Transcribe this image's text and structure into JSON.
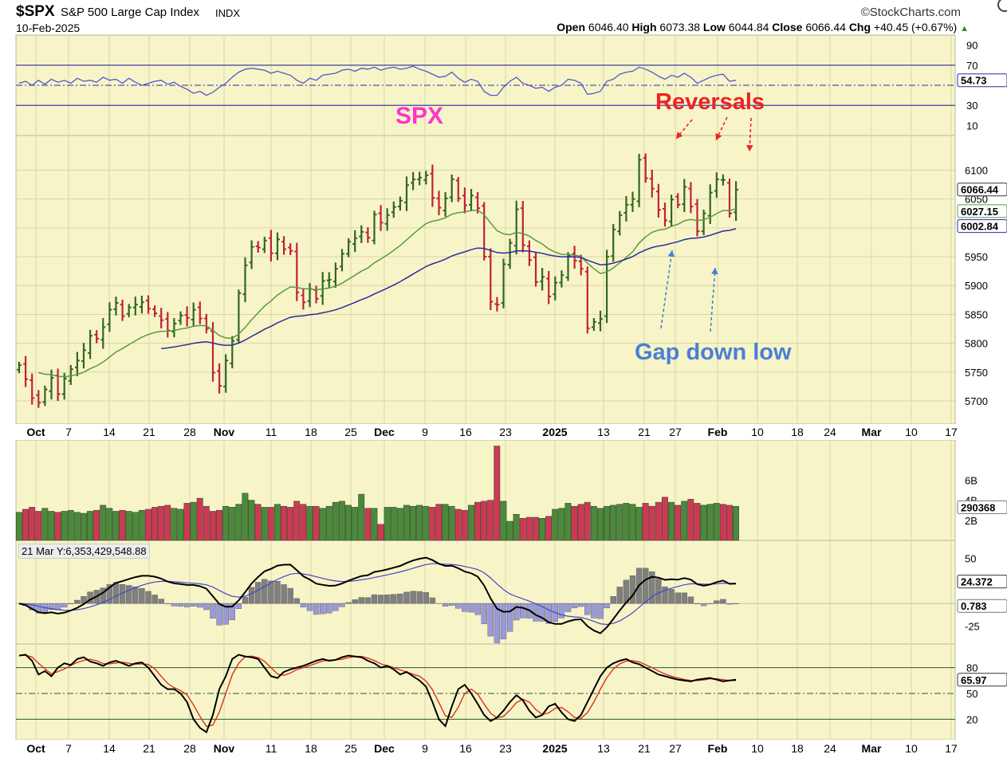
{
  "header": {
    "symbol": "$SPX",
    "name": "S&P 500 Large Cap Index",
    "exchange": "INDX",
    "date": "10-Feb-2025",
    "brand": "©StockCharts.com",
    "open_label": "Open",
    "open": "6046.40",
    "high_label": "High",
    "high": "6073.38",
    "low_label": "Low",
    "low": "6044.84",
    "close_label": "Close",
    "close": "6066.44",
    "chg_label": "Chg",
    "chg": "+40.45 (+0.67%)"
  },
  "annotations": {
    "spx": "SPX",
    "reversals": "Reversals",
    "gap_down_low": "Gap down low"
  },
  "volume_overlay_label": "21 Mar Y:6,353,429,548.88",
  "colors": {
    "background": "#f7f5c8",
    "up_bar": "#336622",
    "down_bar": "#c2213a",
    "vol_up": "#4a8a3a",
    "vol_down": "#cc3a52",
    "ma_fast": "#5a9a3e",
    "ma_slow": "#2a2aa0",
    "rsi": "#5555cc",
    "macd": "#000000",
    "signal": "#4444cc",
    "stoch_k": "#000000",
    "stoch_d": "#e03020",
    "annotation_red": "#ee2222",
    "annotation_blue": "#4a7fd6",
    "annotation_pink": "#ff33cc"
  },
  "chart_data": [
    {
      "type": "ohlc",
      "panel": "price",
      "ylim": [
        5660,
        6160
      ],
      "y_ticks": [
        5700,
        5750,
        5800,
        5850,
        5900,
        5950,
        6000,
        6050,
        6100
      ],
      "x_axis_labels": [
        "Oct",
        "7",
        "14",
        "21",
        "28",
        "Nov",
        "11",
        "18",
        "25",
        "Dec",
        "9",
        "16",
        "23",
        "2025",
        "13",
        "21",
        "27",
        "Feb",
        "10",
        "18",
        "24",
        "Mar",
        "10",
        "17"
      ],
      "last_values": {
        "close": "6066.44",
        "ma_fast": "6027.15",
        "ma_slow": "6002.84"
      },
      "close": [
        5762,
        5738,
        5705,
        5697,
        5720,
        5740,
        5712,
        5739,
        5755,
        5770,
        5788,
        5813,
        5808,
        5828,
        5858,
        5870,
        5847,
        5862,
        5867,
        5871,
        5860,
        5852,
        5840,
        5822,
        5834,
        5848,
        5844,
        5858,
        5843,
        5825,
        5749,
        5726,
        5770,
        5804,
        5887,
        5935,
        5967,
        5966,
        5978,
        5956,
        5980,
        5963,
        5960,
        5888,
        5871,
        5894,
        5877,
        5908,
        5910,
        5929,
        5955,
        5976,
        5982,
        5993,
        5983,
        6023,
        6009,
        6022,
        6036,
        6047,
        6074,
        6084,
        6087,
        6091,
        6052,
        6035,
        6051,
        6084,
        6051,
        6039,
        6056,
        6034,
        5950,
        5872,
        5867,
        5937,
        5974,
        6032,
        5970,
        5944,
        5906,
        5915,
        5881,
        5905,
        5918,
        5952,
        5943,
        5929,
        5826,
        5837,
        5842,
        5950,
        5997,
        6022,
        6040,
        6050,
        6118,
        6086,
        6068,
        6031,
        6013,
        6049,
        6040,
        6071,
        6037,
        5994,
        6025,
        6061,
        6084,
        6083,
        6025,
        6066
      ],
      "volume_billions": [
        2.8,
        3.1,
        3.3,
        2.9,
        3.2,
        2.9,
        2.8,
        2.9,
        3.0,
        2.8,
        2.7,
        2.9,
        3.0,
        3.5,
        3.2,
        2.9,
        3.0,
        2.9,
        2.8,
        3.0,
        3.1,
        3.3,
        3.4,
        3.5,
        3.2,
        3.1,
        3.7,
        3.8,
        4.2,
        3.4,
        2.9,
        3.0,
        3.4,
        3.3,
        3.6,
        4.7,
        4.0,
        3.6,
        3.3,
        3.3,
        3.6,
        3.4,
        3.3,
        3.9,
        3.6,
        3.4,
        3.4,
        3.2,
        3.4,
        3.8,
        3.9,
        3.5,
        3.3,
        4.6,
        3.2,
        3.2,
        1.6,
        3.3,
        3.3,
        3.2,
        3.5,
        3.4,
        3.5,
        3.4,
        3.3,
        3.6,
        3.6,
        3.4,
        3.1,
        3.0,
        3.5,
        3.8,
        3.9,
        4.0,
        9.4,
        3.9,
        1.9,
        2.6,
        2.2,
        2.3,
        2.3,
        2.2,
        2.4,
        3.1,
        3.2,
        3.7,
        3.4,
        3.6,
        3.8,
        3.4,
        3.2,
        3.4,
        3.5,
        3.6,
        3.7,
        3.6,
        3.3,
        3.7,
        3.4,
        3.8,
        4.3,
        3.8,
        3.5,
        3.9,
        4.1,
        3.7,
        3.5,
        3.6,
        3.7,
        3.6,
        3.5,
        3.4
      ]
    },
    {
      "type": "line",
      "panel": "rsi",
      "ylim": [
        0,
        100
      ],
      "ref_lines": [
        70,
        54.73,
        30
      ],
      "last_value": "54.73",
      "y_tick_labels": [
        "90",
        "70",
        "30",
        "10"
      ],
      "values": [
        52,
        54,
        50,
        55,
        51,
        56,
        53,
        55,
        52,
        57,
        54,
        55,
        53,
        58,
        55,
        56,
        52,
        57,
        53,
        50,
        52,
        54,
        55,
        51,
        53,
        49,
        46,
        42,
        44,
        40,
        43,
        48,
        52,
        58,
        63,
        66,
        67,
        66,
        65,
        62,
        64,
        62,
        60,
        55,
        52,
        57,
        55,
        60,
        61,
        62,
        65,
        66,
        64,
        67,
        66,
        68,
        65,
        67,
        68,
        66,
        67,
        69,
        66,
        64,
        61,
        58,
        59,
        63,
        57,
        53,
        56,
        54,
        44,
        40,
        40,
        48,
        54,
        58,
        52,
        50,
        47,
        48,
        44,
        48,
        50,
        56,
        55,
        52,
        41,
        42,
        44,
        54,
        56,
        61,
        63,
        64,
        68,
        66,
        63,
        59,
        56,
        60,
        58,
        62,
        58,
        52,
        55,
        58,
        60,
        61,
        54,
        55
      ]
    },
    {
      "type": "bar+line",
      "panel": "volume",
      "y_tick_labels": [
        "6B",
        "4B",
        "2B"
      ],
      "last_value": "290368"
    },
    {
      "type": "line",
      "panel": "macd",
      "ylim": [
        -45,
        70
      ],
      "y_tick_labels": [
        "50",
        "-25"
      ],
      "last_values": {
        "macd": "24.372",
        "histogram": "0.783"
      }
    },
    {
      "type": "line",
      "panel": "stochastic",
      "ylim": [
        0,
        100
      ],
      "ref_lines": [
        80,
        50,
        20
      ],
      "y_tick_labels": [
        "80",
        "50",
        "20"
      ],
      "last_value": "65.97",
      "k_values": [
        94,
        95,
        88,
        72,
        76,
        70,
        80,
        85,
        83,
        90,
        92,
        87,
        85,
        82,
        86,
        88,
        85,
        82,
        85,
        86,
        80,
        70,
        60,
        55,
        55,
        50,
        40,
        20,
        10,
        5,
        25,
        55,
        70,
        90,
        95,
        93,
        92,
        90,
        80,
        70,
        68,
        75,
        78,
        80,
        82,
        85,
        88,
        90,
        88,
        89,
        92,
        94,
        93,
        92,
        88,
        85,
        80,
        82,
        78,
        72,
        75,
        70,
        65,
        58,
        40,
        20,
        12,
        35,
        55,
        60,
        50,
        38,
        25,
        18,
        22,
        30,
        40,
        48,
        42,
        30,
        22,
        25,
        35,
        38,
        28,
        20,
        18,
        25,
        40,
        55,
        70,
        80,
        85,
        88,
        90,
        86,
        84,
        80,
        76,
        72,
        70,
        68,
        66,
        65,
        64,
        66,
        67,
        68,
        66,
        64,
        65,
        66
      ]
    }
  ]
}
